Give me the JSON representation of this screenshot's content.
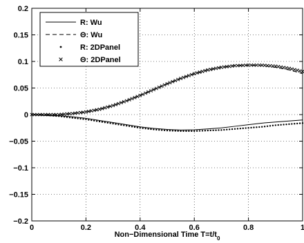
{
  "chart_data": {
    "type": "line",
    "title": "",
    "xlabel": "Non−Dimensional Time T=t/t",
    "xlabel_subscript": "0",
    "ylabel": "",
    "xlim": [
      0,
      1
    ],
    "ylim": [
      -0.2,
      0.2
    ],
    "grid": true,
    "grid_style": "dotted",
    "legend_position": "top-left",
    "x_ticks": [
      0,
      0.2,
      0.4,
      0.6,
      0.8,
      1
    ],
    "x_tick_labels": [
      "0",
      "0.2",
      "0.4",
      "0.6",
      "0.8",
      "1"
    ],
    "y_ticks": [
      0.2,
      0.15,
      0.1,
      0.05,
      0,
      -0.05,
      -0.1,
      -0.15,
      -0.2
    ],
    "y_tick_labels": [
      "0.2",
      "0.15",
      "0.1",
      "0.05",
      "0",
      "−0.05",
      "−0.1",
      "−0.15",
      "−0.2"
    ],
    "series": [
      {
        "name": "R: Wu",
        "style": "solid",
        "color": "#000000",
        "x": [
          0,
          0.05,
          0.1,
          0.15,
          0.2,
          0.25,
          0.3,
          0.35,
          0.4,
          0.45,
          0.5,
          0.55,
          0.6,
          0.65,
          0.7,
          0.75,
          0.8,
          0.85,
          0.9,
          0.95,
          1.0
        ],
        "y": [
          0,
          -0.001,
          -0.002,
          -0.004,
          -0.007,
          -0.011,
          -0.015,
          -0.019,
          -0.023,
          -0.026,
          -0.028,
          -0.029,
          -0.0285,
          -0.027,
          -0.025,
          -0.022,
          -0.019,
          -0.016,
          -0.014,
          -0.012,
          -0.01
        ]
      },
      {
        "name": "Θ: Wu",
        "style": "dashed",
        "color": "#000000",
        "x": [
          0,
          0.05,
          0.1,
          0.15,
          0.2,
          0.25,
          0.3,
          0.35,
          0.4,
          0.45,
          0.5,
          0.55,
          0.6,
          0.65,
          0.7,
          0.75,
          0.8,
          0.85,
          0.9,
          0.95,
          1.0
        ],
        "y": [
          0,
          0,
          0,
          0.002,
          0.005,
          0.01,
          0.017,
          0.026,
          0.036,
          0.047,
          0.058,
          0.068,
          0.077,
          0.084,
          0.089,
          0.092,
          0.093,
          0.092,
          0.089,
          0.084,
          0.077
        ]
      },
      {
        "name": "R: 2DPanel",
        "style": "dots",
        "color": "#000000",
        "x": [
          0,
          0.05,
          0.1,
          0.15,
          0.2,
          0.25,
          0.3,
          0.35,
          0.4,
          0.45,
          0.5,
          0.55,
          0.6,
          0.65,
          0.7,
          0.75,
          0.8,
          0.85,
          0.9,
          0.95,
          1.0
        ],
        "y": [
          0,
          -0.001,
          -0.003,
          -0.006,
          -0.009,
          -0.013,
          -0.017,
          -0.021,
          -0.025,
          -0.028,
          -0.03,
          -0.031,
          -0.031,
          -0.03,
          -0.029,
          -0.027,
          -0.025,
          -0.023,
          -0.02,
          -0.018,
          -0.016
        ]
      },
      {
        "name": "Θ: 2DPanel",
        "style": "crosses",
        "color": "#000000",
        "x": [
          0,
          0.05,
          0.1,
          0.15,
          0.2,
          0.25,
          0.3,
          0.35,
          0.4,
          0.45,
          0.5,
          0.55,
          0.6,
          0.65,
          0.7,
          0.75,
          0.8,
          0.85,
          0.9,
          0.95,
          1.0
        ],
        "y": [
          0,
          0,
          0,
          0.002,
          0.005,
          0.01,
          0.017,
          0.026,
          0.036,
          0.047,
          0.058,
          0.068,
          0.077,
          0.084,
          0.089,
          0.092,
          0.093,
          0.093,
          0.091,
          0.087,
          0.081
        ]
      }
    ]
  }
}
